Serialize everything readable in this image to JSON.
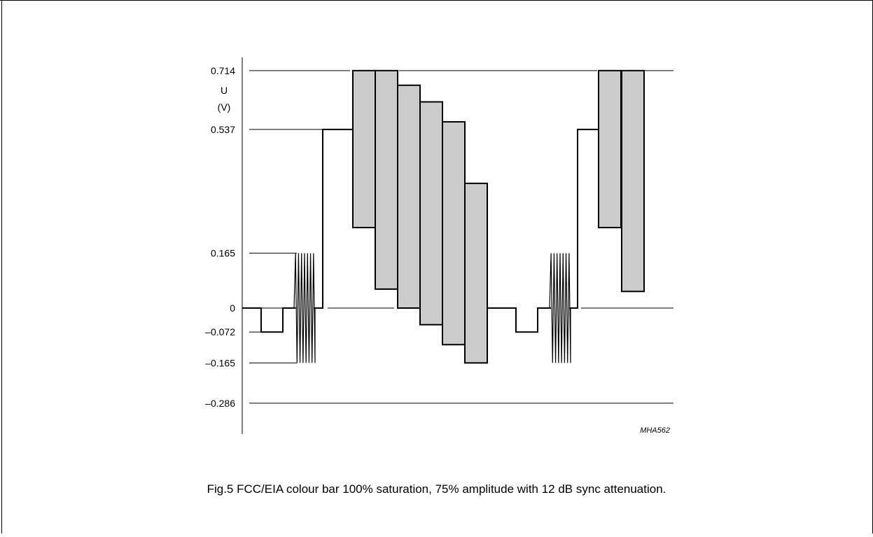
{
  "figure": {
    "caption": "Fig.5  FCC/EIA colour bar 100% saturation, 75% amplitude with 12 dB sync attenuation.",
    "code": "MHA562"
  },
  "axis": {
    "unit_symbol": "U",
    "unit": "(V)",
    "tick_labels": [
      "0.714",
      "0.537",
      "0.165",
      "0",
      "–0.072",
      "–0.165",
      "–0.286"
    ]
  },
  "chart_data": {
    "type": "line",
    "ylabel": "U (V)",
    "yticks": [
      0.714,
      0.537,
      0.165,
      0,
      -0.072,
      -0.165,
      -0.286
    ],
    "ylim": [
      -0.286,
      0.714
    ],
    "colors": {
      "bar_fill": "#cccccc",
      "line": "#000000"
    },
    "description_values": {
      "sync_level": -0.072,
      "burst_range": [
        -0.165,
        0.165
      ],
      "white_level": 0.537,
      "peak_level": 0.714
    },
    "colour_bars": [
      {
        "min": 0.242,
        "max": 0.714
      },
      {
        "min": 0.057,
        "max": 0.714
      },
      {
        "min": 0.0,
        "max": 0.67
      },
      {
        "min": -0.05,
        "max": 0.62
      },
      {
        "min": -0.11,
        "max": 0.56
      },
      {
        "min": -0.165,
        "max": 0.375
      }
    ],
    "second_line_bars": [
      {
        "min": 0.242,
        "max": 0.714
      },
      {
        "min": 0.05,
        "max": 0.714
      }
    ]
  }
}
